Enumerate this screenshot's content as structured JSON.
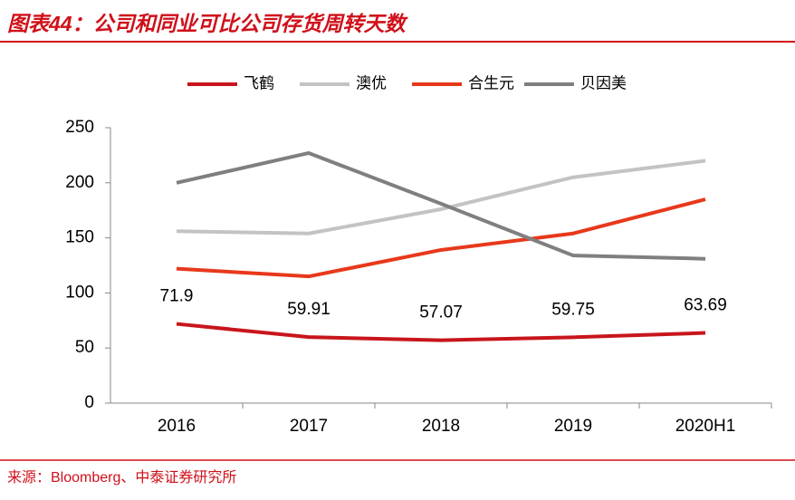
{
  "chart_data": {
    "type": "line",
    "title": "图表44：公司和同业可比公司存货周转天数",
    "source": "来源：Bloomberg、中泰证券研究所",
    "categories": [
      "2016",
      "2017",
      "2018",
      "2019",
      "2020H1"
    ],
    "series": [
      {
        "name": "飞鹤",
        "color": "#c8151c",
        "values": [
          71.9,
          59.91,
          57.07,
          59.75,
          63.69
        ]
      },
      {
        "name": "澳优",
        "color": "#c3c3c3",
        "values": [
          156,
          154,
          176,
          205,
          220
        ]
      },
      {
        "name": "合生元",
        "color": "#e8381b",
        "values": [
          122,
          115,
          139,
          154,
          185
        ]
      },
      {
        "name": "贝因美",
        "color": "#7f7f7f",
        "values": [
          200,
          227,
          181,
          134,
          131
        ]
      }
    ],
    "labeled_series": 0,
    "ylim": [
      0,
      250
    ],
    "yticks": [
      0,
      50,
      100,
      150,
      200,
      250
    ],
    "legend": "top"
  }
}
